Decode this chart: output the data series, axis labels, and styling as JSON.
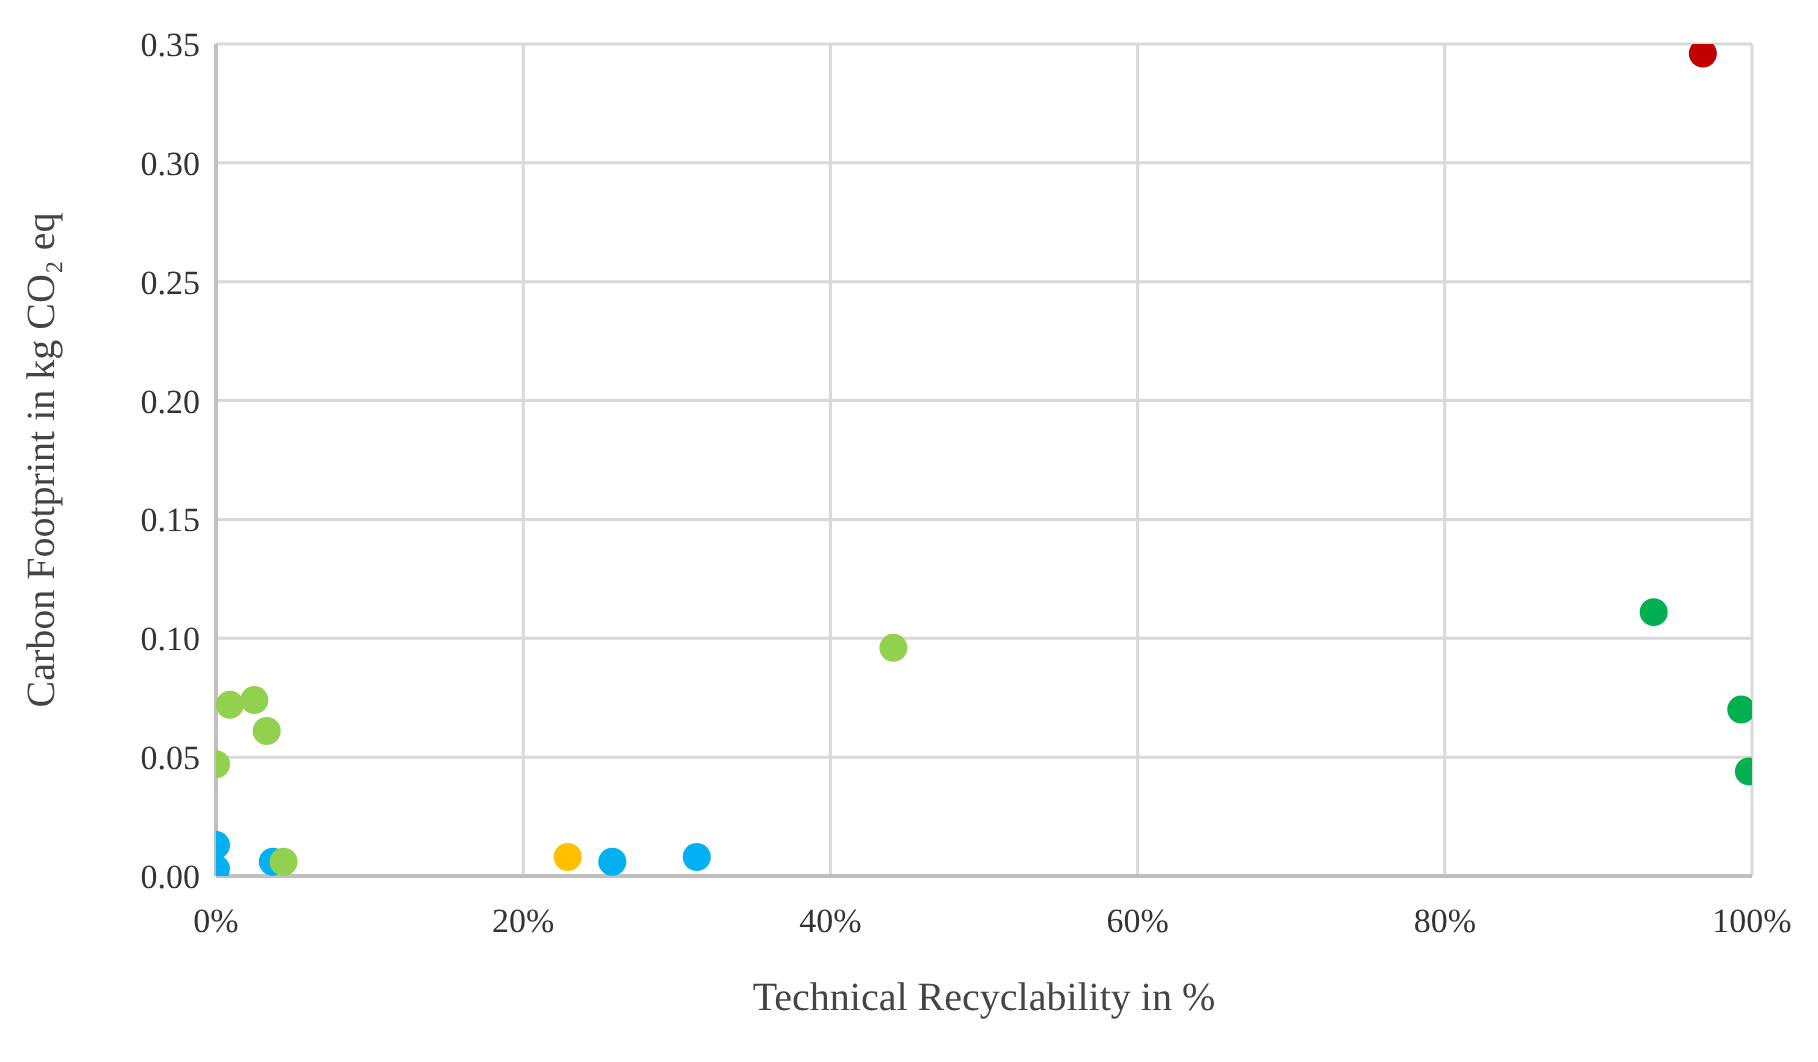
{
  "chart_data": {
    "type": "scatter",
    "xlabel": "Technical Recyclability in %",
    "ylabel": "Carbon Footprint in kg CO₂ eq",
    "xlim": [
      0,
      100
    ],
    "xticks": [
      {
        "value": 0,
        "label": "0%"
      },
      {
        "value": 20,
        "label": "20%"
      },
      {
        "value": 40,
        "label": "40%"
      },
      {
        "value": 60,
        "label": "60%"
      },
      {
        "value": 80,
        "label": "80%"
      },
      {
        "value": 100,
        "label": "100%"
      }
    ],
    "ylim": [
      0,
      0.35
    ],
    "yticks": [
      {
        "value": 0,
        "label": "0.00"
      },
      {
        "value": 0.05,
        "label": "0.05"
      },
      {
        "value": 0.1,
        "label": "0.10"
      },
      {
        "value": 0.15,
        "label": "0.15"
      },
      {
        "value": 0.2,
        "label": "0.20"
      },
      {
        "value": 0.25,
        "label": "0.25"
      },
      {
        "value": 0.3,
        "label": "0.30"
      },
      {
        "value": 0.35,
        "label": "0.35"
      }
    ],
    "grid": true,
    "marker": "circle",
    "series": [
      {
        "color": "#c00000",
        "x": [
          96.8
        ],
        "values": [
          0.346
        ]
      },
      {
        "color": "#00b050",
        "x": [
          93.6,
          99.3,
          99.8
        ],
        "values": [
          0.111,
          0.07,
          0.044
        ]
      },
      {
        "color": "#ffc000",
        "x": [
          22.9
        ],
        "values": [
          0.008
        ]
      },
      {
        "color": "#00b0f0",
        "x": [
          0,
          0,
          3.7,
          25.8,
          31.3
        ],
        "values": [
          0.013,
          0.003,
          0.006,
          0.006,
          0.008
        ]
      },
      {
        "color": "#92d050",
        "x": [
          0,
          0.9,
          2.5,
          3.3,
          44.1,
          4.4
        ],
        "values": [
          0.047,
          0.072,
          0.074,
          0.061,
          0.096,
          0.006
        ]
      }
    ]
  }
}
